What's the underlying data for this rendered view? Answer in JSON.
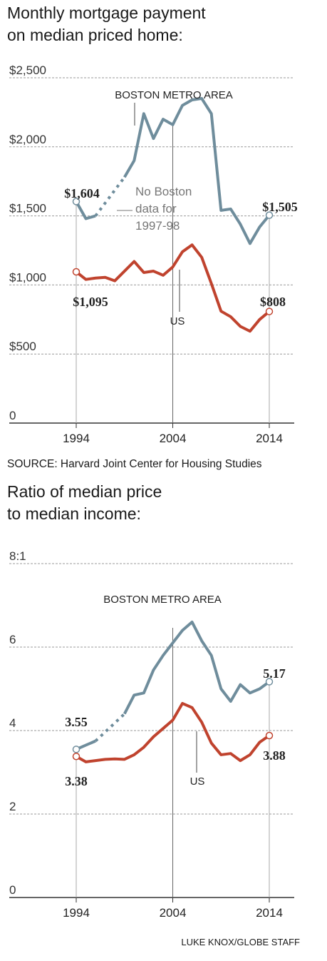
{
  "chart_data": [
    {
      "type": "line",
      "title": "Monthly mortgage payment on median priced home:",
      "title_lines": [
        "Monthly mortgage payment",
        "on median priced home:"
      ],
      "x": [
        1994,
        1995,
        1996,
        1997,
        1998,
        1999,
        2000,
        2001,
        2002,
        2003,
        2004,
        2005,
        2006,
        2007,
        2008,
        2009,
        2010,
        2011,
        2012,
        2013,
        2014
      ],
      "ylim": [
        0,
        2500
      ],
      "yticks": [
        0,
        500,
        1000,
        1500,
        2000,
        2500
      ],
      "yticklabels": [
        "0",
        "$500",
        "$1,000",
        "$1,500",
        "$2,000",
        "$2,500"
      ],
      "xticklabels": [
        "1994",
        "2004",
        "2014"
      ],
      "grid": true,
      "series": [
        {
          "name": "BOSTON METRO AREA",
          "color": "#6f8d9c",
          "values": [
            1604,
            1480,
            1500,
            null,
            null,
            1780,
            1900,
            2240,
            2060,
            2200,
            2160,
            2300,
            2340,
            2350,
            2240,
            1540,
            1550,
            1440,
            1300,
            1420,
            1505
          ],
          "gap_years": [
            1997,
            1998
          ],
          "end_labels": [
            "$1,604",
            "$1,505"
          ]
        },
        {
          "name": "US",
          "color": "#c0432e",
          "values": [
            1095,
            1040,
            1050,
            1055,
            1030,
            1100,
            1170,
            1090,
            1100,
            1070,
            1130,
            1240,
            1290,
            1200,
            1010,
            810,
            770,
            700,
            665,
            750,
            808
          ],
          "end_labels": [
            "$1,095",
            "$808"
          ]
        }
      ],
      "annotations": {
        "gap_note": [
          "No Boston",
          "data for",
          "1997-98"
        ]
      }
    },
    {
      "type": "line",
      "title": "Ratio of median price to median income:",
      "title_lines": [
        "Ratio of median price",
        "to median income:"
      ],
      "x": [
        1994,
        1995,
        1996,
        1997,
        1998,
        1999,
        2000,
        2001,
        2002,
        2003,
        2004,
        2005,
        2006,
        2007,
        2008,
        2009,
        2010,
        2011,
        2012,
        2013,
        2014
      ],
      "ylim": [
        0,
        8
      ],
      "yticks": [
        0,
        2,
        4,
        6,
        8
      ],
      "yticklabels": [
        "0",
        "2",
        "4",
        "6",
        "8:1"
      ],
      "xticklabels": [
        "1994",
        "2004",
        "2014"
      ],
      "grid": true,
      "series": [
        {
          "name": "BOSTON METRO AREA",
          "color": "#6f8d9c",
          "values": [
            3.55,
            3.65,
            3.75,
            null,
            null,
            4.4,
            4.85,
            4.9,
            5.45,
            5.8,
            6.1,
            6.4,
            6.6,
            6.15,
            5.8,
            5.0,
            4.7,
            5.1,
            4.9,
            5.0,
            5.17
          ],
          "gap_years": [
            1997,
            1998
          ],
          "end_labels": [
            "3.55",
            "5.17"
          ]
        },
        {
          "name": "US",
          "color": "#c0432e",
          "values": [
            3.38,
            3.25,
            3.28,
            3.31,
            3.32,
            3.31,
            3.42,
            3.6,
            3.85,
            4.05,
            4.25,
            4.65,
            4.55,
            4.2,
            3.7,
            3.42,
            3.45,
            3.28,
            3.42,
            3.72,
            3.88
          ],
          "end_labels": [
            "3.38",
            "3.88"
          ]
        }
      ]
    }
  ],
  "source": "SOURCE: Harvard Joint Center for Housing Studies",
  "credit": "LUKE KNOX/GLOBE STAFF"
}
